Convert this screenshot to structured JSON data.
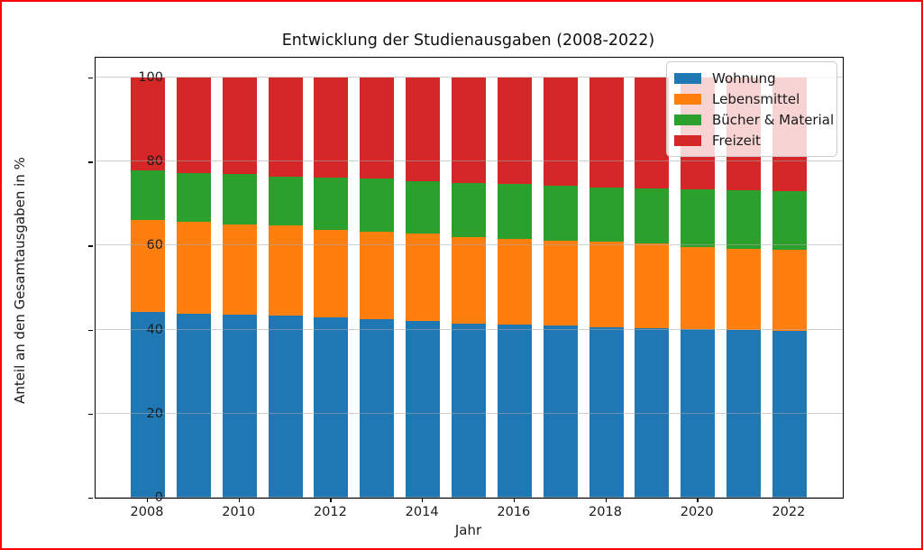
{
  "frame": {
    "border_color": "#fe0000",
    "background": "#ffffff"
  },
  "chart_data": {
    "type": "bar",
    "stacked": true,
    "title": "Entwicklung der Studienausgaben (2008-2022)",
    "xlabel": "Jahr",
    "ylabel": "Anteil an den Gesamtausgaben in %",
    "ylim": [
      0,
      100
    ],
    "yticks": [
      0,
      20,
      40,
      60,
      80,
      100
    ],
    "categories": [
      2008,
      2009,
      2010,
      2011,
      2012,
      2013,
      2014,
      2015,
      2016,
      2017,
      2018,
      2019,
      2020,
      2021,
      2022
    ],
    "xtick_labels": [
      "2008",
      "2010",
      "2012",
      "2014",
      "2016",
      "2018",
      "2020",
      "2022"
    ],
    "series": [
      {
        "name": "Wohnung",
        "color": "#1f77b4",
        "values": [
          44.3,
          43.7,
          43.6,
          43.4,
          42.9,
          42.4,
          42.0,
          41.5,
          41.1,
          40.9,
          40.5,
          40.3,
          40.1,
          39.9,
          39.8
        ]
      },
      {
        "name": "Lebensmittel",
        "color": "#ff7f0e",
        "values": [
          21.9,
          21.9,
          21.5,
          21.4,
          20.8,
          20.9,
          20.8,
          20.5,
          20.5,
          20.3,
          20.4,
          20.3,
          19.5,
          19.4,
          19.3
        ]
      },
      {
        "name": "Bücher & Material",
        "color": "#2ca02c",
        "values": [
          11.7,
          11.7,
          11.9,
          11.6,
          12.4,
          12.6,
          12.5,
          12.9,
          13.0,
          13.0,
          13.0,
          13.0,
          13.7,
          13.9,
          13.9
        ]
      },
      {
        "name": "Freizeit",
        "color": "#d62728",
        "values": [
          22.1,
          22.7,
          23.0,
          23.6,
          23.9,
          24.1,
          24.7,
          25.1,
          25.4,
          25.8,
          26.1,
          26.4,
          26.7,
          26.8,
          27.0
        ]
      }
    ],
    "legend": {
      "position": "upper right",
      "entries": [
        "Wohnung",
        "Lebensmittel",
        "Bücher & Material",
        "Freizeit"
      ]
    },
    "grid": "horizontal"
  },
  "colors": {
    "grid": "#aaaaaa",
    "axis": "#000000",
    "text": "#1a1a1a"
  }
}
